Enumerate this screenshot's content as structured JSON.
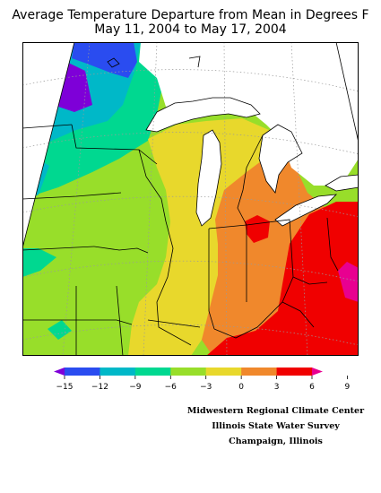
{
  "title": {
    "line1": "Average Temperature Departure from Mean in Degrees F",
    "line2": "May 11, 2004 to May 17, 2004"
  },
  "legend": {
    "bins": [
      {
        "color": "#7e00d8"
      },
      {
        "color": "#2a4cf0"
      },
      {
        "color": "#00b8c8"
      },
      {
        "color": "#00d890"
      },
      {
        "color": "#98de2a"
      },
      {
        "color": "#e8d82c"
      },
      {
        "color": "#f0882c"
      },
      {
        "color": "#f00000"
      },
      {
        "color": "#e80090"
      }
    ],
    "ticks": [
      "−15",
      "−12",
      "−9",
      "−6",
      "−3",
      "0",
      "3",
      "6",
      "9"
    ]
  },
  "credits": {
    "line1": "Midwestern Regional Climate Center",
    "line2": "Illinois State Water Survey",
    "line3": "Champaign, Illinois"
  }
}
